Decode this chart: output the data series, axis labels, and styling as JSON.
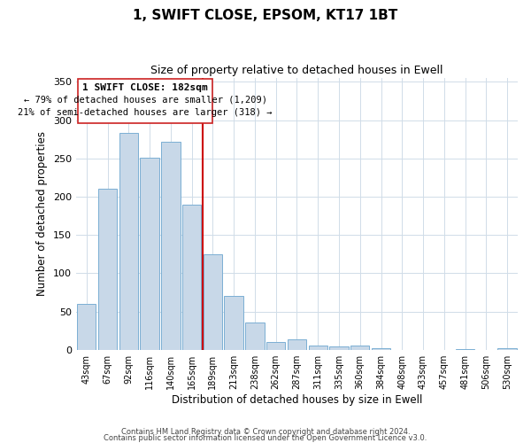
{
  "title": "1, SWIFT CLOSE, EPSOM, KT17 1BT",
  "subtitle": "Size of property relative to detached houses in Ewell",
  "xlabel": "Distribution of detached houses by size in Ewell",
  "ylabel": "Number of detached properties",
  "bar_labels": [
    "43sqm",
    "67sqm",
    "92sqm",
    "116sqm",
    "140sqm",
    "165sqm",
    "189sqm",
    "213sqm",
    "238sqm",
    "262sqm",
    "287sqm",
    "311sqm",
    "335sqm",
    "360sqm",
    "384sqm",
    "408sqm",
    "433sqm",
    "457sqm",
    "481sqm",
    "506sqm",
    "530sqm"
  ],
  "bar_values": [
    60,
    210,
    283,
    251,
    272,
    190,
    125,
    70,
    35,
    10,
    14,
    5,
    4,
    5,
    2,
    0,
    0,
    0,
    1,
    0,
    2
  ],
  "bar_color": "#c8d8e8",
  "bar_edge_color": "#7bafd4",
  "vline_x": 6.0,
  "vline_color": "#cc0000",
  "ylim": [
    0,
    355
  ],
  "yticks": [
    0,
    50,
    100,
    150,
    200,
    250,
    300,
    350
  ],
  "annotation_title": "1 SWIFT CLOSE: 182sqm",
  "annotation_line1": "← 79% of detached houses are smaller (1,209)",
  "annotation_line2": "21% of semi-detached houses are larger (318) →",
  "footer1": "Contains HM Land Registry data © Crown copyright and database right 2024.",
  "footer2": "Contains public sector information licensed under the Open Government Licence v3.0.",
  "background_color": "#ffffff",
  "grid_color": "#d0dce8"
}
